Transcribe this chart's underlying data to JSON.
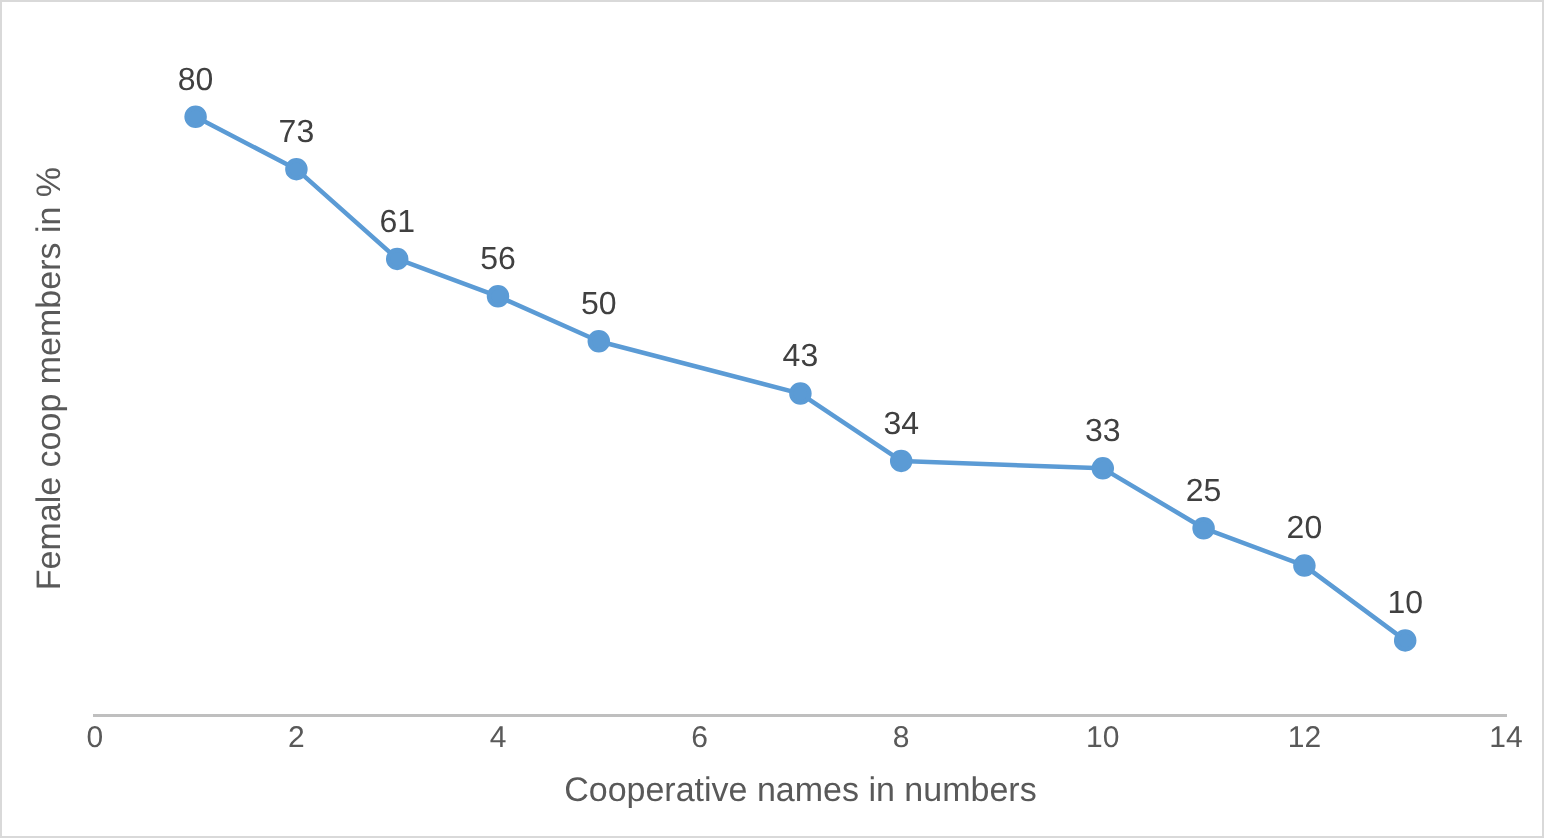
{
  "chart_data": {
    "type": "line",
    "xlabel": "Cooperative names in numbers",
    "ylabel": "Female coop members in %",
    "x": [
      1,
      2,
      3,
      4,
      5,
      7,
      8,
      10,
      11,
      12,
      13
    ],
    "values": [
      80,
      73,
      61,
      56,
      50,
      43,
      34,
      33,
      25,
      20,
      10
    ],
    "color": "#5b9bd5",
    "marker": "circle",
    "data_labels": true,
    "grid": false,
    "tick_labels": "x",
    "xlim": [
      0,
      14
    ],
    "xticks": [
      0,
      2,
      4,
      6,
      8,
      10,
      12,
      14
    ]
  }
}
